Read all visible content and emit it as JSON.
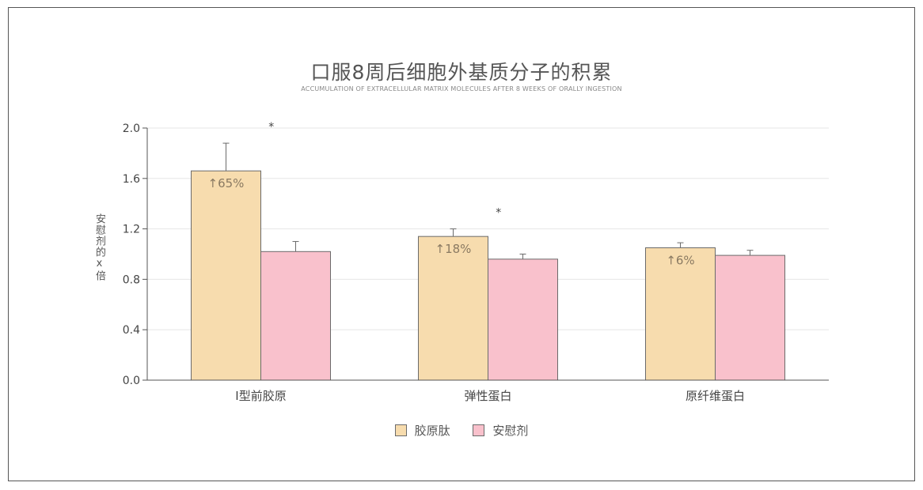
{
  "chart_data": {
    "type": "bar",
    "title": "口服8周后细胞外基质分子的积累",
    "subtitle": "ACCUMULATION OF EXTRACELLULAR MATRIX MOLECULES AFTER 8 WEEKS OF ORALLY INGESTION",
    "ylabel": "安慰剂的x倍",
    "ylim": [
      0,
      2.0
    ],
    "yticks": [
      "0.0",
      "0.4",
      "0.8",
      "1.2",
      "1.6",
      "2.0"
    ],
    "grid": true,
    "legend_position": "bottom-center",
    "categories": [
      "I型前胶原",
      "弹性蛋白",
      "原纤维蛋白"
    ],
    "series": [
      {
        "name": "胶原肽",
        "color": "#f7dcae",
        "values": [
          1.66,
          1.14,
          1.05
        ],
        "error_upper": [
          1.88,
          1.2,
          1.09
        ],
        "labels": [
          "↑65%",
          "↑18%",
          "↑6%"
        ]
      },
      {
        "name": "安慰剂",
        "color": "#f9c1cc",
        "values": [
          1.02,
          0.96,
          0.99
        ],
        "error_upper": [
          1.1,
          1.0,
          1.03
        ],
        "labels": [
          "",
          "",
          ""
        ]
      }
    ],
    "significance_markers": [
      "*",
      "*",
      ""
    ]
  }
}
